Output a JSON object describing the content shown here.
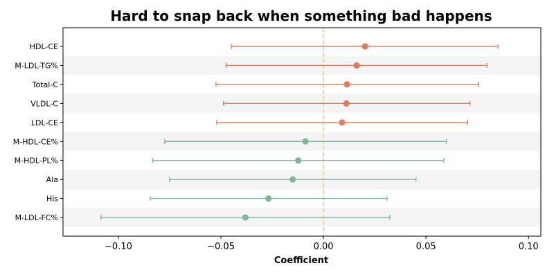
{
  "chart_data": {
    "type": "forest",
    "title": "Hard to snap back when something bad happens",
    "xlabel": "Coefficient",
    "ylabel": "",
    "xlim": [
      -0.127,
      0.106
    ],
    "x_ticks": [
      -0.1,
      -0.05,
      0.0,
      0.05,
      0.1
    ],
    "x_tick_labels": [
      "−0.10",
      "−0.05",
      "0.00",
      "0.05",
      "0.10"
    ],
    "reference_line": 0.0,
    "grid": false,
    "alternating_row_shading": true,
    "colors": {
      "positive": "#e07b5d",
      "negative": "#82b69a",
      "reference_line": "#f3c98b",
      "row_shade": "#f4f4f4"
    },
    "rows": [
      {
        "label": "HDL-CE",
        "estimate": 0.0203,
        "ci_low": -0.0448,
        "ci_high": 0.0852,
        "group": "positive"
      },
      {
        "label": "M-LDL-TG%",
        "estimate": 0.0162,
        "ci_low": -0.0474,
        "ci_high": 0.0797,
        "group": "positive"
      },
      {
        "label": "Total-C",
        "estimate": 0.0115,
        "ci_low": -0.0524,
        "ci_high": 0.0757,
        "group": "positive"
      },
      {
        "label": "VLDL-C",
        "estimate": 0.0112,
        "ci_low": -0.0487,
        "ci_high": 0.0714,
        "group": "positive"
      },
      {
        "label": "LDL-CE",
        "estimate": 0.0091,
        "ci_low": -0.052,
        "ci_high": 0.0703,
        "group": "positive"
      },
      {
        "label": "M-HDL-CE%",
        "estimate": -0.0088,
        "ci_low": -0.0774,
        "ci_high": 0.06,
        "group": "negative"
      },
      {
        "label": "M-HDL-PL%",
        "estimate": -0.0123,
        "ci_low": -0.0833,
        "ci_high": 0.0587,
        "group": "negative"
      },
      {
        "label": "Ala",
        "estimate": -0.015,
        "ci_low": -0.0751,
        "ci_high": 0.0451,
        "group": "negative"
      },
      {
        "label": "His",
        "estimate": -0.0268,
        "ci_low": -0.0845,
        "ci_high": 0.031,
        "group": "negative"
      },
      {
        "label": "M-LDL-FC%",
        "estimate": -0.0381,
        "ci_low": -0.1085,
        "ci_high": 0.0323,
        "group": "negative"
      }
    ]
  }
}
